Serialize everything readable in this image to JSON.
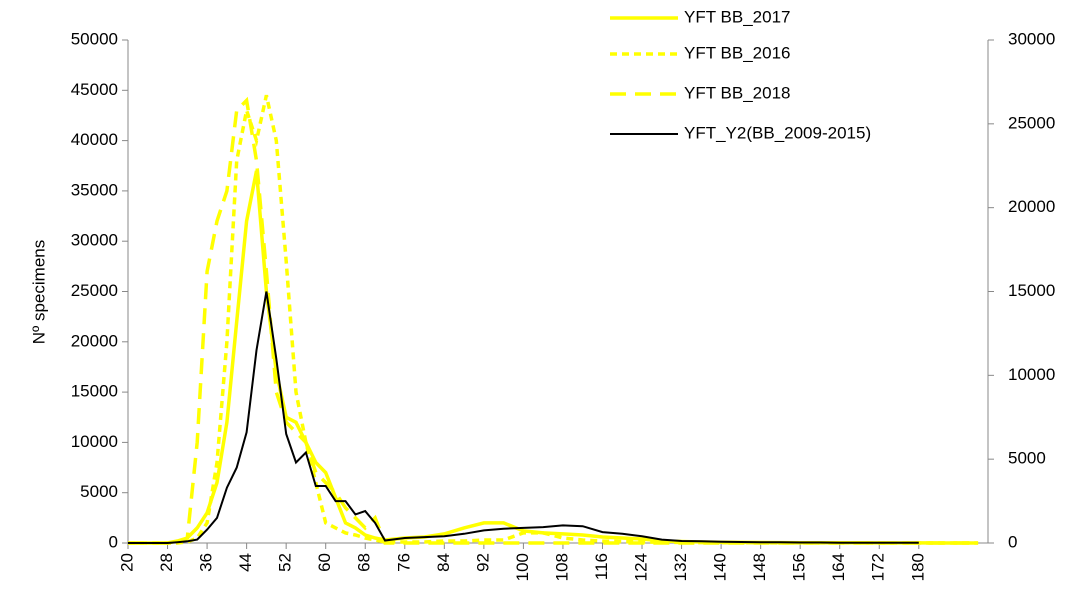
{
  "chart_data": {
    "type": "line",
    "y_label": "Nº specimens",
    "x": [
      20,
      22,
      24,
      26,
      28,
      30,
      32,
      34,
      36,
      38,
      40,
      42,
      44,
      46,
      48,
      50,
      52,
      54,
      56,
      58,
      60,
      62,
      64,
      66,
      68,
      70,
      72,
      76,
      80,
      84,
      88,
      92,
      96,
      100,
      104,
      108,
      112,
      116,
      120,
      124,
      128,
      132,
      136,
      140,
      144,
      148,
      152,
      156,
      160,
      164,
      168,
      172,
      176,
      180,
      184,
      188,
      192
    ],
    "xlim": [
      20,
      194
    ],
    "xticks": [
      20,
      28,
      36,
      44,
      52,
      60,
      68,
      76,
      84,
      92,
      100,
      108,
      116,
      124,
      132,
      140,
      148,
      156,
      164,
      172,
      180
    ],
    "ylim": [
      0,
      50000
    ],
    "yticks": [
      0,
      5000,
      10000,
      15000,
      20000,
      25000,
      30000,
      35000,
      40000,
      45000,
      50000
    ],
    "y2lim": [
      0,
      30000
    ],
    "y2ticks": [
      0,
      5000,
      10000,
      15000,
      20000,
      25000,
      30000
    ],
    "legend": "upper right",
    "series": [
      {
        "name": "YFT BB_2017",
        "color": "#ffff00",
        "dash": "solid",
        "values": [
          0,
          0,
          0,
          0,
          0,
          200,
          500,
          1500,
          3000,
          6000,
          12000,
          22000,
          32000,
          37000,
          25000,
          17000,
          12500,
          12000,
          10000,
          8000,
          7000,
          4500,
          2000,
          1500,
          800,
          500,
          300,
          500,
          600,
          900,
          1500,
          2000,
          2000,
          1200,
          1000,
          900,
          800,
          600,
          500,
          400,
          200,
          150,
          100,
          80,
          60,
          50,
          40,
          30,
          30,
          20,
          20,
          10,
          10,
          10,
          0,
          0,
          0
        ]
      },
      {
        "name": "YFT BB_2016",
        "color": "#ffff00",
        "dash": "short",
        "values": [
          0,
          0,
          0,
          0,
          0,
          0,
          100,
          500,
          2000,
          8000,
          20000,
          38000,
          43000,
          40000,
          44500,
          40000,
          28000,
          15000,
          10000,
          6000,
          2000,
          1500,
          1000,
          800,
          500,
          300,
          100,
          100,
          100,
          200,
          200,
          300,
          300,
          1000,
          1000,
          500,
          300,
          200,
          150,
          100,
          80,
          50,
          40,
          30,
          20,
          20,
          10,
          10,
          10,
          10,
          10,
          0,
          0,
          0,
          0,
          0,
          0
        ]
      },
      {
        "name": "YFT BB_2018",
        "color": "#ffff00",
        "dash": "long",
        "values": [
          0,
          0,
          0,
          0,
          0,
          0,
          500,
          10000,
          27000,
          32000,
          35000,
          43000,
          44000,
          38000,
          27000,
          15000,
          12000,
          11000,
          10000,
          7000,
          6000,
          5000,
          3500,
          2500,
          1500,
          2500,
          0,
          0,
          0,
          0,
          0,
          0,
          0,
          0,
          0,
          0,
          0,
          0,
          0,
          0,
          0,
          0,
          0,
          0,
          0,
          0,
          0,
          0,
          0,
          0,
          0,
          0,
          0,
          0,
          0,
          0,
          0
        ]
      },
      {
        "name": "YFT_Y2(BB_2009-2015)",
        "color": "#000000",
        "dash": "solid",
        "axis": "y2",
        "values": [
          0,
          0,
          0,
          0,
          0,
          50,
          100,
          200,
          800,
          1500,
          3300,
          4500,
          6600,
          11500,
          15000,
          11000,
          6500,
          4800,
          5400,
          3400,
          3400,
          2500,
          2500,
          1700,
          1900,
          1200,
          150,
          300,
          350,
          400,
          550,
          750,
          850,
          900,
          950,
          1050,
          1000,
          650,
          550,
          400,
          200,
          120,
          100,
          80,
          60,
          50,
          40,
          30,
          30,
          20,
          20,
          10,
          10,
          10,
          null,
          null,
          null
        ]
      }
    ]
  }
}
